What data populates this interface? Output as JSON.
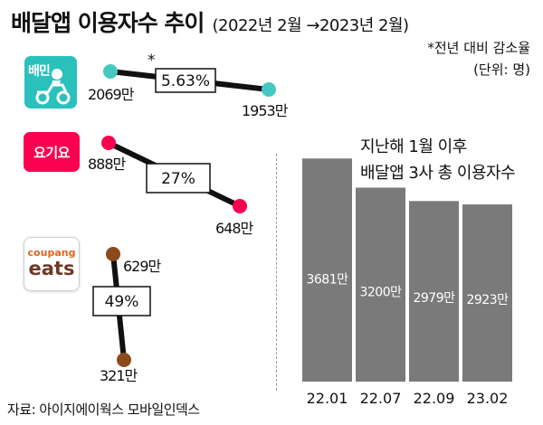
{
  "header": {
    "title": "배달앱 이용자수 추이",
    "subtitle": "(2022년 2월 →2023년 2월)",
    "note": "*전년 대비 감소율",
    "unit": "(단위: 명)"
  },
  "logos": {
    "baemin_text": "배민",
    "yogiyo_text": "요기요",
    "coupang_top": "coupang",
    "coupang_bottom": "eats"
  },
  "bar_title": {
    "line1": "지난해 1월 이후",
    "line2": "배달앱 3사 총 이용자수"
  },
  "source": "자료: 아이지에이웍스 모바일인덱스",
  "colors": {
    "baemin": "#2ac1bc",
    "baemin_dot": "#45c8c2",
    "yogiyo": "#fa0050",
    "coupang_dot": "#8b4a1c",
    "bar": "#7a7a7a"
  },
  "chart_data": [
    {
      "type": "line",
      "title": "배달앱 이용자수 추이",
      "unit": "명",
      "period": [
        "2022년 2월",
        "2023년 2월"
      ],
      "series": [
        {
          "name": "배달의민족",
          "values": [
            20690000,
            19530000
          ],
          "labels": [
            "2069만",
            "1953만"
          ],
          "change": "5.63%",
          "change_marker": "*"
        },
        {
          "name": "요기요",
          "values": [
            8880000,
            6480000
          ],
          "labels": [
            "888만",
            "648만"
          ],
          "change": "27%"
        },
        {
          "name": "쿠팡이츠",
          "values": [
            6290000,
            3210000
          ],
          "labels": [
            "629만",
            "321만"
          ],
          "change": "49%"
        }
      ]
    },
    {
      "type": "bar",
      "title": "지난해 1월 이후 배달앱 3사 총 이용자수",
      "categories": [
        "22.01",
        "22.07",
        "22.09",
        "23.02"
      ],
      "values": [
        3681,
        3200,
        2979,
        2923
      ],
      "labels": [
        "3681만",
        "3200만",
        "2979만",
        "2923만"
      ],
      "unit": "만 명",
      "ylim": [
        0,
        3700
      ]
    }
  ]
}
